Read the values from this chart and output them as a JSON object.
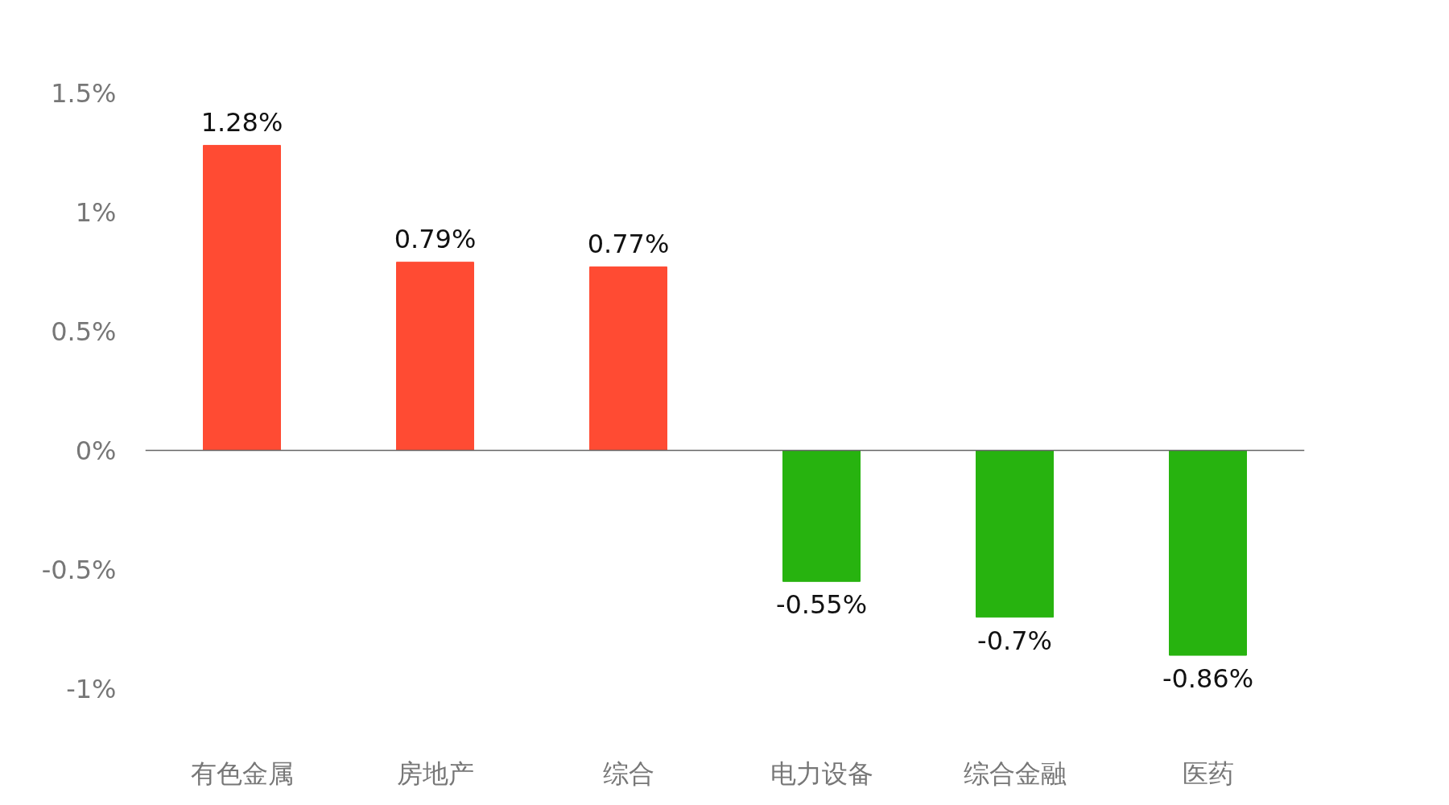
{
  "chart_data": {
    "type": "bar",
    "categories": [
      "有色金属",
      "房地产",
      "综合",
      "电力设备",
      "综合金融",
      "医药"
    ],
    "values": [
      1.28,
      0.79,
      0.77,
      -0.55,
      -0.7,
      -0.86
    ],
    "colors": [
      "#ff4b33",
      "#ff4b33",
      "#ff4b33",
      "#27b30f",
      "#27b30f",
      "#27b30f"
    ],
    "value_labels": [
      "1.28%",
      "0.79%",
      "0.77%",
      "-0.55%",
      "-0.7%",
      "-0.86%"
    ],
    "ylim": [
      -1,
      1.5
    ],
    "yticks": [
      {
        "value": -1,
        "label": "-1%"
      },
      {
        "value": -0.5,
        "label": "-0.5%"
      },
      {
        "value": 0,
        "label": "0%"
      },
      {
        "value": 0.5,
        "label": "0.5%"
      },
      {
        "value": 1,
        "label": "1%"
      },
      {
        "value": 1.5,
        "label": "1.5%"
      }
    ],
    "ref_lines": [
      {
        "axis": "y",
        "value": 0,
        "color": "#666666"
      }
    ],
    "grid": false
  }
}
